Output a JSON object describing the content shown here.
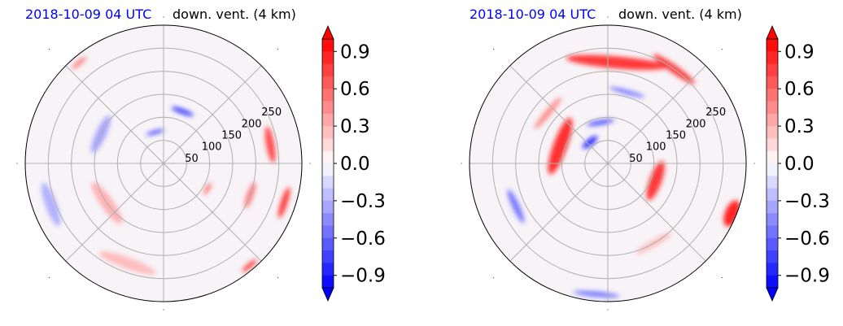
{
  "chart_data": [
    {
      "type": "heatmap",
      "projection": "polar",
      "title_left": "2018-10-09 04 UTC",
      "title_right": "down. vent. (4 km)",
      "radial_ticks": [
        "50",
        "100",
        "150",
        "200",
        "250"
      ],
      "radial_values": [
        50,
        100,
        150,
        200,
        250
      ],
      "r_max": 300,
      "spokes": 8,
      "grid": true,
      "colorbar": {
        "ticks": [
          "0.9",
          "0.6",
          "0.3",
          "0.0",
          "−0.3",
          "−0.6",
          "−0.9"
        ],
        "tick_values": [
          0.9,
          0.6,
          0.3,
          0.0,
          -0.3,
          -0.6,
          -0.9
        ],
        "range": [
          -1.0,
          1.0
        ],
        "extend": "both",
        "cmap": "bwr",
        "low_color": "#0000ff",
        "mid_color": "#ffffff",
        "high_color": "#ff0000"
      },
      "features": [
        {
          "r": 235,
          "az": 80,
          "len": 80,
          "w": 18,
          "v": 0.8
        },
        {
          "r": 275,
          "az": 108,
          "len": 70,
          "w": 14,
          "v": 0.9
        },
        {
          "r": 120,
          "az": 20,
          "len": 50,
          "w": 10,
          "v": -0.95
        },
        {
          "r": 70,
          "az": -15,
          "len": 40,
          "w": 8,
          "v": -0.8
        },
        {
          "r": 150,
          "az": -65,
          "len": 90,
          "w": 22,
          "v": -0.4
        },
        {
          "r": 260,
          "az": -110,
          "len": 100,
          "w": 24,
          "v": -0.35
        },
        {
          "r": 150,
          "az": 235,
          "len": 110,
          "w": 26,
          "v": 0.35
        },
        {
          "r": 230,
          "az": 200,
          "len": 130,
          "w": 24,
          "v": 0.3
        },
        {
          "r": 200,
          "az": 110,
          "len": 60,
          "w": 14,
          "v": 0.6
        },
        {
          "r": 290,
          "az": 140,
          "len": 40,
          "w": 10,
          "v": 0.9
        },
        {
          "r": 110,
          "az": 120,
          "len": 30,
          "w": 8,
          "v": 0.7
        },
        {
          "r": 285,
          "az": -40,
          "len": 40,
          "w": 10,
          "v": 0.6
        }
      ]
    },
    {
      "type": "heatmap",
      "projection": "polar",
      "title_left": "2018-10-09 04 UTC",
      "title_right": "down. vent. (4 km)",
      "radial_ticks": [
        "50",
        "100",
        "150",
        "200",
        "250"
      ],
      "radial_values": [
        50,
        100,
        150,
        200,
        250
      ],
      "r_max": 300,
      "spokes": 8,
      "grid": true,
      "colorbar": {
        "ticks": [
          "0.9",
          "0.6",
          "0.3",
          "0.0",
          "−0.3",
          "−0.6",
          "−0.9"
        ],
        "tick_values": [
          0.9,
          0.6,
          0.3,
          0.0,
          -0.3,
          -0.6,
          -0.9
        ],
        "range": [
          -1.0,
          1.0
        ],
        "extend": "both",
        "cmap": "bwr",
        "low_color": "#0000ff",
        "mid_color": "#ffffff",
        "high_color": "#ff0000"
      },
      "features": [
        {
          "r": 220,
          "az": 5,
          "len": 220,
          "w": 26,
          "v": 0.9
        },
        {
          "r": 250,
          "az": 35,
          "len": 110,
          "w": 18,
          "v": 0.85
        },
        {
          "r": 110,
          "az": -70,
          "len": 130,
          "w": 30,
          "v": 0.95
        },
        {
          "r": 110,
          "az": 110,
          "len": 90,
          "w": 26,
          "v": 0.9
        },
        {
          "r": 60,
          "az": -40,
          "len": 40,
          "w": 14,
          "v": -0.95
        },
        {
          "r": 90,
          "az": -10,
          "len": 60,
          "w": 10,
          "v": -0.8
        },
        {
          "r": 160,
          "az": 15,
          "len": 80,
          "w": 10,
          "v": -0.6
        },
        {
          "r": 290,
          "az": 112,
          "len": 60,
          "w": 30,
          "v": 1.0
        },
        {
          "r": 220,
          "az": -115,
          "len": 80,
          "w": 16,
          "v": -0.6
        },
        {
          "r": 285,
          "az": 185,
          "len": 100,
          "w": 12,
          "v": -0.6
        },
        {
          "r": 170,
          "az": -50,
          "len": 90,
          "w": 14,
          "v": 0.5
        },
        {
          "r": 200,
          "az": 150,
          "len": 90,
          "w": 14,
          "v": 0.3
        }
      ]
    }
  ]
}
